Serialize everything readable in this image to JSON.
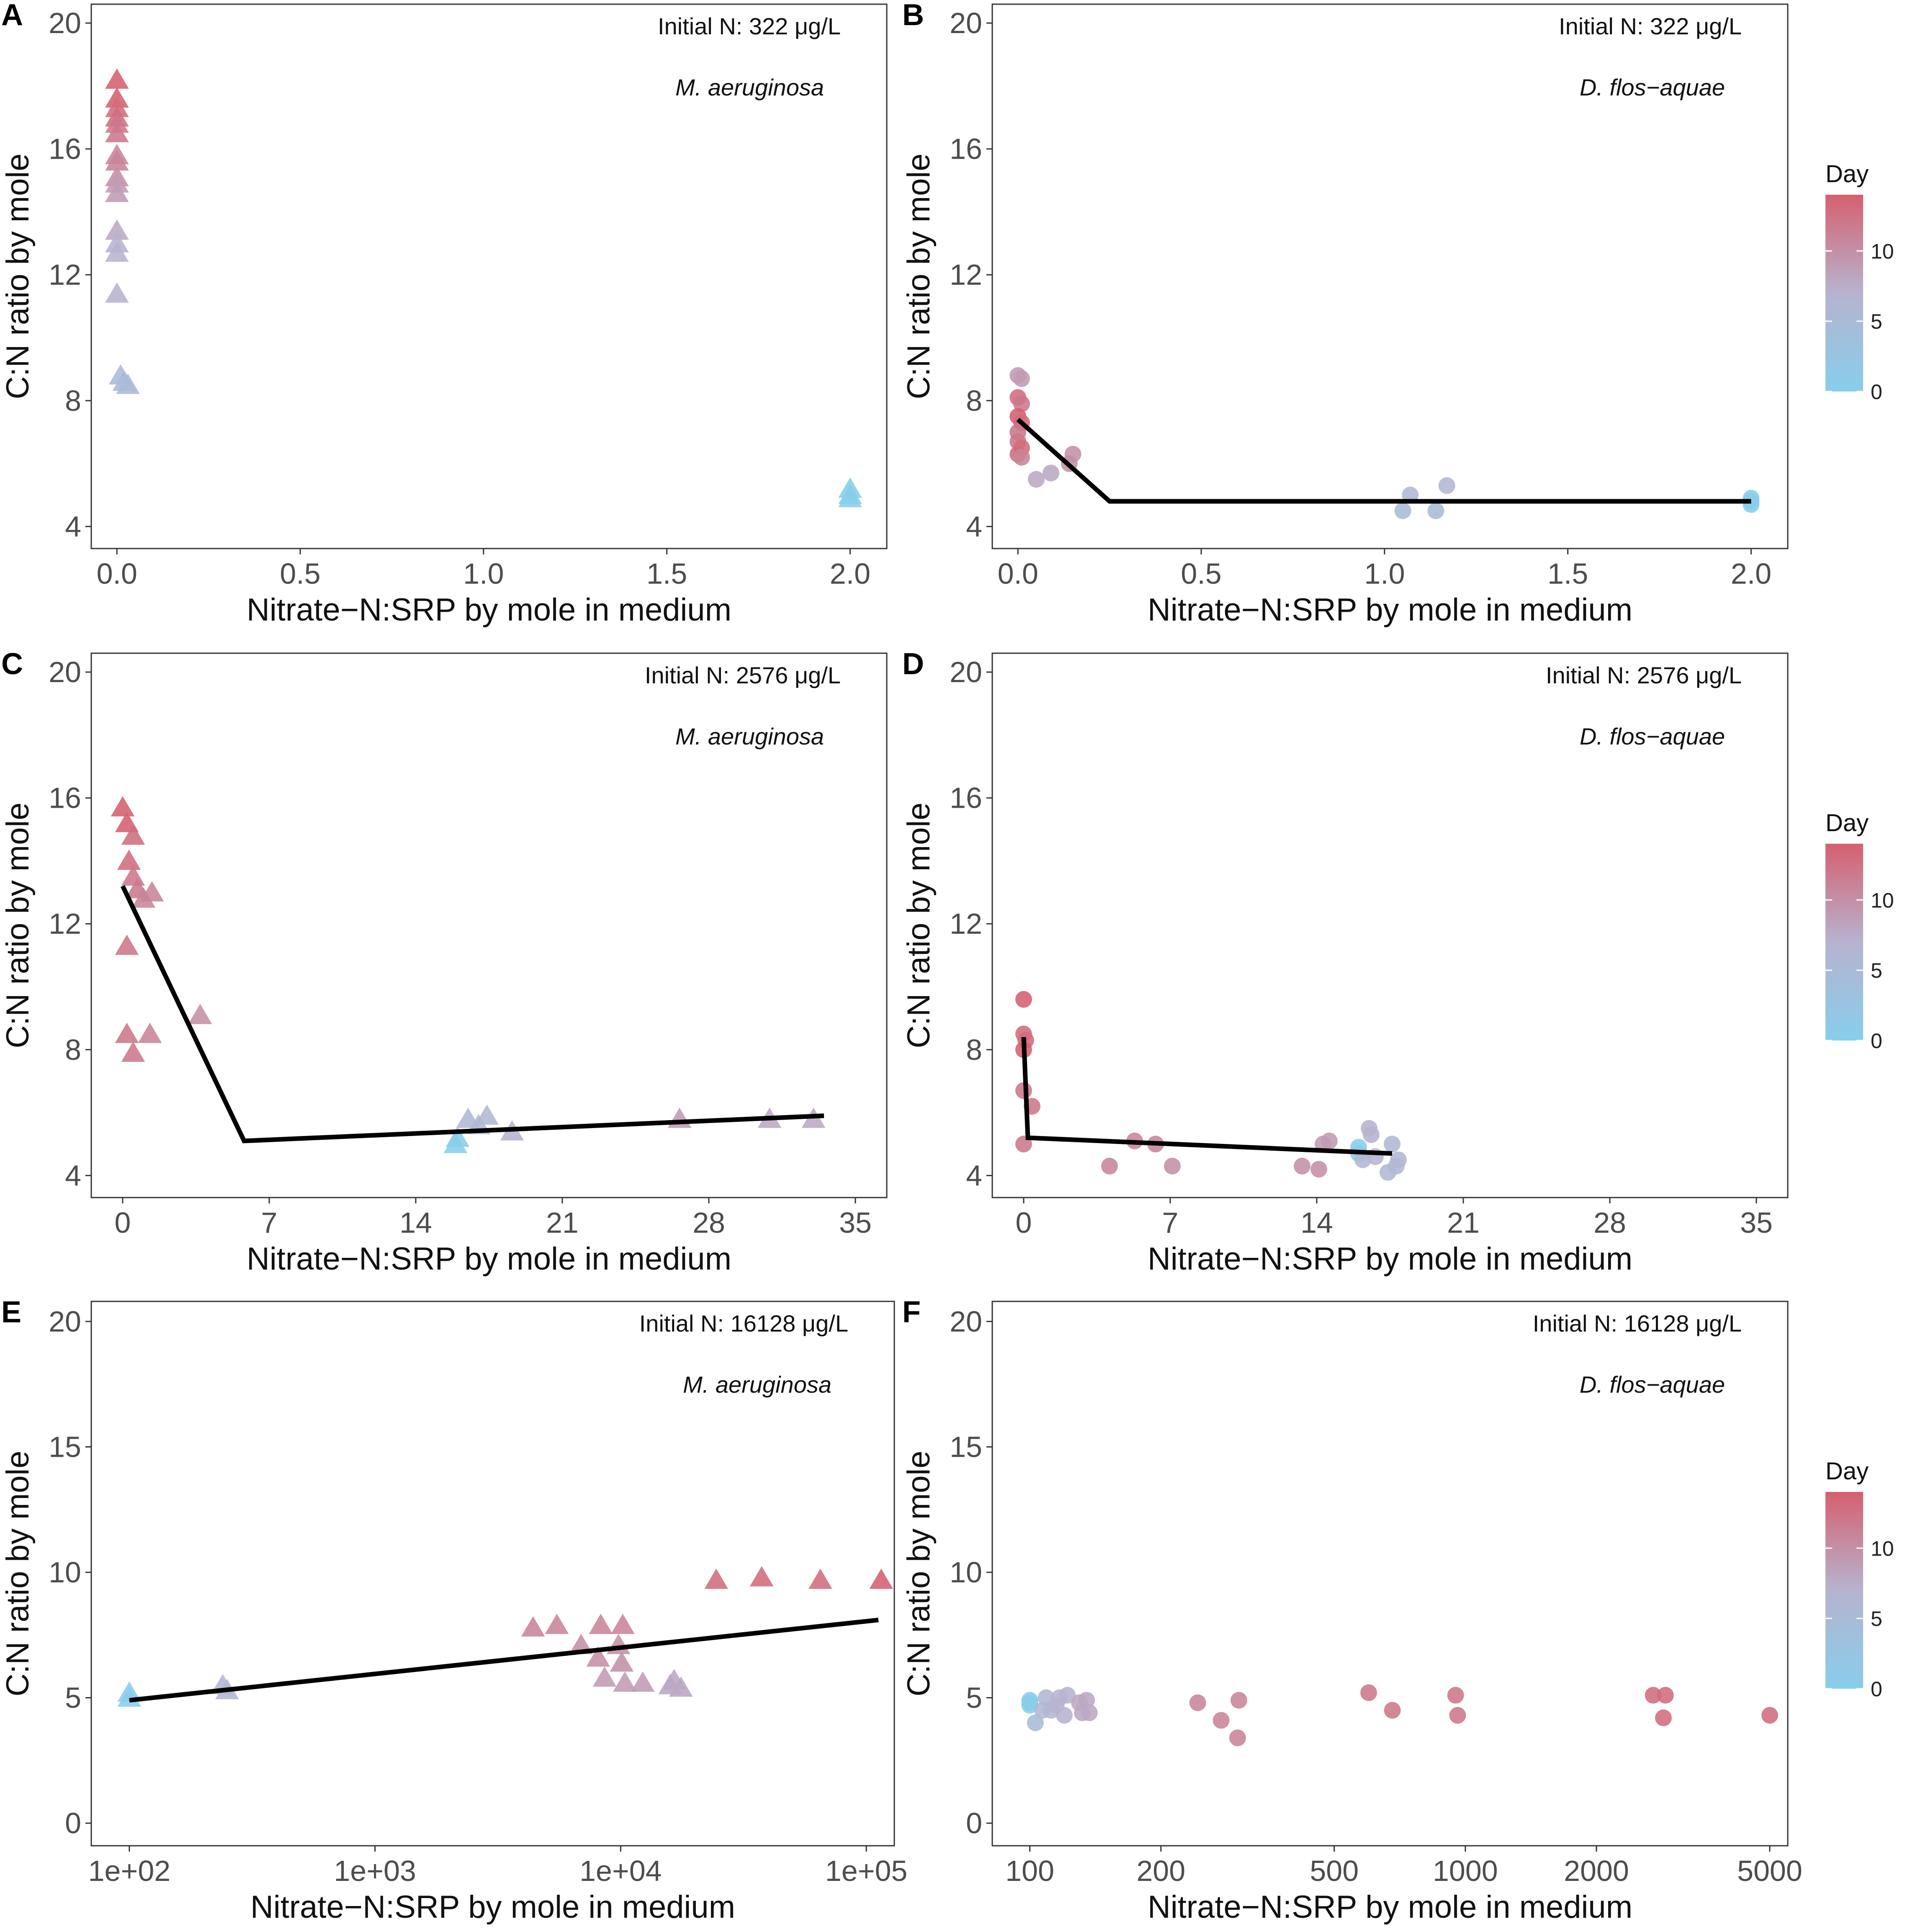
{
  "colors": {
    "low": "#87ceeb",
    "mid": "#b7b3cf",
    "high": "#d5606f",
    "line": "#000000",
    "frame": "#333333"
  },
  "legend": {
    "title": "Day",
    "ticks": [
      0,
      5,
      10
    ],
    "max": 14
  },
  "chart_data": [
    {
      "panel": "A",
      "type": "scatter",
      "marker": "triangle",
      "xscale": "linear",
      "annotation": "Initial N: 322 μg/L",
      "species": "M. aeruginosa",
      "xlabel": "Nitrate−N:SRP by mole in medium",
      "ylabel": "C:N ratio by mole",
      "xlim": [
        -0.07,
        2.1
      ],
      "ylim": [
        3.3,
        20.6
      ],
      "xticks": [
        0,
        0.5,
        1,
        1.5,
        2
      ],
      "xtick_labels": [
        "0.0",
        "0.5",
        "1.0",
        "1.5",
        "2.0"
      ],
      "yticks": [
        4,
        8,
        12,
        16,
        20
      ],
      "ytick_labels": [
        "4",
        "8",
        "12",
        "16",
        "20"
      ],
      "points": [
        [
          0.0,
          18.2,
          14
        ],
        [
          0.0,
          17.6,
          14
        ],
        [
          0.0,
          17.3,
          13
        ],
        [
          0.0,
          17.0,
          13
        ],
        [
          0.0,
          16.8,
          12
        ],
        [
          0.0,
          16.5,
          12
        ],
        [
          0.0,
          15.8,
          11
        ],
        [
          0.0,
          15.6,
          11
        ],
        [
          0.0,
          15.1,
          10
        ],
        [
          0.0,
          14.9,
          9
        ],
        [
          0.0,
          14.6,
          9
        ],
        [
          0.0,
          13.4,
          8
        ],
        [
          0.0,
          13.0,
          7
        ],
        [
          0.0,
          12.7,
          7
        ],
        [
          0.0,
          11.4,
          7
        ],
        [
          0.01,
          8.8,
          5
        ],
        [
          0.02,
          8.6,
          5
        ],
        [
          0.03,
          8.5,
          5
        ],
        [
          2.0,
          5.2,
          0
        ],
        [
          2.0,
          5.0,
          0
        ],
        [
          2.0,
          4.9,
          0
        ]
      ],
      "fit": []
    },
    {
      "panel": "B",
      "type": "scatter",
      "marker": "circle",
      "xscale": "linear",
      "annotation": "Initial N: 322 μg/L",
      "species": "D. flos−aquae",
      "xlabel": "Nitrate−N:SRP by mole in medium",
      "ylabel": "C:N ratio by mole",
      "xlim": [
        -0.07,
        2.1
      ],
      "ylim": [
        3.3,
        20.6
      ],
      "xticks": [
        0,
        0.5,
        1,
        1.5,
        2
      ],
      "xtick_labels": [
        "0.0",
        "0.5",
        "1.0",
        "1.5",
        "2.0"
      ],
      "yticks": [
        4,
        8,
        12,
        16,
        20
      ],
      "ytick_labels": [
        "4",
        "8",
        "12",
        "16",
        "20"
      ],
      "points": [
        [
          0.0,
          8.8,
          9
        ],
        [
          0.01,
          8.7,
          9
        ],
        [
          0.0,
          8.1,
          13
        ],
        [
          0.01,
          7.9,
          12
        ],
        [
          0.0,
          7.5,
          14
        ],
        [
          0.01,
          7.3,
          13
        ],
        [
          0.0,
          7.0,
          12
        ],
        [
          0.0,
          6.7,
          12
        ],
        [
          0.01,
          6.5,
          13
        ],
        [
          0.0,
          6.3,
          13
        ],
        [
          0.01,
          6.2,
          11
        ],
        [
          0.15,
          6.3,
          10
        ],
        [
          0.14,
          6.0,
          10
        ],
        [
          0.09,
          5.7,
          8
        ],
        [
          0.05,
          5.5,
          8
        ],
        [
          1.07,
          5.0,
          6
        ],
        [
          1.17,
          5.3,
          6
        ],
        [
          1.05,
          4.5,
          5
        ],
        [
          1.14,
          4.5,
          5
        ],
        [
          2.0,
          4.9,
          0
        ],
        [
          2.0,
          4.8,
          0
        ],
        [
          2.0,
          4.7,
          0
        ]
      ],
      "fit": [
        [
          0.0,
          7.4
        ],
        [
          0.25,
          4.8
        ],
        [
          2.0,
          4.8
        ]
      ]
    },
    {
      "panel": "C",
      "type": "scatter",
      "marker": "triangle",
      "xscale": "linear",
      "annotation": "Initial N: 2576 μg/L",
      "species": "M. aeruginosa",
      "xlabel": "Nitrate−N:SRP by mole in medium",
      "ylabel": "C:N ratio by mole",
      "xlim": [
        -1.5,
        36.5
      ],
      "ylim": [
        3.3,
        20.6
      ],
      "xticks": [
        0,
        7,
        14,
        21,
        28,
        35
      ],
      "xtick_labels": [
        "0",
        "7",
        "14",
        "21",
        "28",
        "35"
      ],
      "yticks": [
        4,
        8,
        12,
        16,
        20
      ],
      "ytick_labels": [
        "4",
        "8",
        "12",
        "16",
        "20"
      ],
      "points": [
        [
          0.0,
          15.7,
          14
        ],
        [
          0.2,
          15.2,
          14
        ],
        [
          0.5,
          14.8,
          13
        ],
        [
          0.3,
          14.0,
          13
        ],
        [
          0.5,
          13.5,
          12
        ],
        [
          0.7,
          13.1,
          12
        ],
        [
          1.0,
          12.8,
          11
        ],
        [
          1.4,
          13.0,
          11
        ],
        [
          0.2,
          11.3,
          12
        ],
        [
          3.7,
          9.1,
          10
        ],
        [
          0.2,
          8.5,
          12
        ],
        [
          1.3,
          8.5,
          11
        ],
        [
          0.5,
          7.9,
          12
        ],
        [
          16.5,
          5.8,
          6
        ],
        [
          17.0,
          5.6,
          6
        ],
        [
          17.4,
          5.9,
          6
        ],
        [
          18.6,
          5.4,
          7
        ],
        [
          16.0,
          5.2,
          0
        ],
        [
          15.9,
          5.0,
          0
        ],
        [
          26.6,
          5.8,
          9
        ],
        [
          30.9,
          5.8,
          8
        ],
        [
          33.0,
          5.8,
          8
        ]
      ],
      "fit": [
        [
          0.0,
          13.2
        ],
        [
          5.8,
          5.1
        ],
        [
          33.5,
          5.9
        ]
      ]
    },
    {
      "panel": "D",
      "type": "scatter",
      "marker": "circle",
      "xscale": "linear",
      "annotation": "Initial N: 2576 μg/L",
      "species": "D. flos−aquae",
      "xlabel": "Nitrate−N:SRP by mole in medium",
      "ylabel": "C:N ratio by mole",
      "xlim": [
        -1.5,
        36.5
      ],
      "ylim": [
        3.3,
        20.6
      ],
      "xticks": [
        0,
        7,
        14,
        21,
        28,
        35
      ],
      "xtick_labels": [
        "0",
        "7",
        "14",
        "21",
        "28",
        "35"
      ],
      "yticks": [
        4,
        8,
        12,
        16,
        20
      ],
      "ytick_labels": [
        "4",
        "8",
        "12",
        "16",
        "20"
      ],
      "points": [
        [
          0.0,
          9.6,
          14
        ],
        [
          0.0,
          8.5,
          13
        ],
        [
          0.1,
          8.3,
          13
        ],
        [
          0.0,
          8.0,
          14
        ],
        [
          0.0,
          6.7,
          12
        ],
        [
          0.4,
          6.2,
          12
        ],
        [
          0.0,
          5.0,
          12
        ],
        [
          4.1,
          4.3,
          11
        ],
        [
          5.3,
          5.1,
          11
        ],
        [
          6.3,
          5.0,
          11
        ],
        [
          7.1,
          4.3,
          10
        ],
        [
          13.3,
          4.3,
          10
        ],
        [
          14.1,
          4.2,
          10
        ],
        [
          14.3,
          5.0,
          9
        ],
        [
          14.6,
          5.1,
          9
        ],
        [
          16.0,
          4.9,
          0
        ],
        [
          16.0,
          4.7,
          0
        ],
        [
          16.5,
          5.5,
          7
        ],
        [
          16.6,
          5.3,
          7
        ],
        [
          16.8,
          4.6,
          7
        ],
        [
          16.2,
          4.5,
          6
        ],
        [
          17.4,
          4.1,
          6
        ],
        [
          17.8,
          4.3,
          6
        ],
        [
          17.6,
          5.0,
          6
        ],
        [
          17.9,
          4.5,
          6
        ]
      ],
      "fit": [
        [
          0.0,
          8.4
        ],
        [
          0.2,
          5.2
        ],
        [
          17.6,
          4.7
        ]
      ]
    },
    {
      "panel": "E",
      "type": "scatter",
      "marker": "triangle",
      "xscale": "log",
      "annotation": "Initial N: 16128 μg/L",
      "species": "M. aeruginosa",
      "xlabel": "Nitrate−N:SRP by mole in medium",
      "ylabel": "C:N ratio by mole",
      "xlim": [
        70,
        130000
      ],
      "ylim": [
        -0.9,
        20.8
      ],
      "xticks": [
        100,
        1000,
        10000,
        100000
      ],
      "xtick_labels": [
        "1e+02",
        "1e+03",
        "1e+04",
        "1e+05"
      ],
      "yticks": [
        0,
        5,
        10,
        15,
        20
      ],
      "ytick_labels": [
        "0",
        "5",
        "10",
        "15",
        "20"
      ],
      "points": [
        [
          100,
          5.2,
          0
        ],
        [
          100,
          5.0,
          0
        ],
        [
          240,
          5.5,
          6
        ],
        [
          250,
          5.3,
          6
        ],
        [
          4400,
          7.8,
          11
        ],
        [
          5500,
          7.9,
          11
        ],
        [
          6900,
          7.1,
          10
        ],
        [
          8300,
          7.9,
          11
        ],
        [
          8100,
          6.6,
          10
        ],
        [
          8600,
          5.8,
          9
        ],
        [
          9800,
          7.1,
          10
        ],
        [
          10200,
          7.9,
          11
        ],
        [
          10100,
          6.4,
          10
        ],
        [
          10400,
          5.6,
          9
        ],
        [
          12300,
          5.6,
          9
        ],
        [
          15900,
          5.5,
          8
        ],
        [
          16500,
          5.7,
          8
        ],
        [
          17600,
          5.4,
          8
        ],
        [
          24500,
          9.7,
          13
        ],
        [
          37500,
          9.8,
          13
        ],
        [
          65000,
          9.7,
          13
        ],
        [
          115000,
          9.7,
          14
        ]
      ],
      "fit": [
        [
          100,
          4.9
        ],
        [
          112000,
          8.1
        ]
      ]
    },
    {
      "panel": "F",
      "type": "scatter",
      "marker": "circle",
      "xscale": "log",
      "annotation": "Initial N: 16128 μg/L",
      "species": "D. flos−aquae",
      "xlabel": "Nitrate−N:SRP by mole in medium",
      "ylabel": "C:N ratio by mole",
      "xlim": [
        82,
        5500
      ],
      "ylim": [
        -0.9,
        20.8
      ],
      "xticks": [
        100,
        200,
        500,
        1000,
        2000,
        5000
      ],
      "xtick_labels": [
        "100",
        "200",
        "500",
        "1000",
        "2000",
        "5000"
      ],
      "yticks": [
        0,
        5,
        10,
        15,
        20
      ],
      "ytick_labels": [
        "0",
        "5",
        "10",
        "15",
        "20"
      ],
      "points": [
        [
          100,
          4.9,
          0
        ],
        [
          100,
          4.7,
          0
        ],
        [
          100,
          4.8,
          0
        ],
        [
          103,
          4.0,
          5
        ],
        [
          107,
          4.5,
          6
        ],
        [
          109,
          5.0,
          6
        ],
        [
          112,
          4.5,
          6
        ],
        [
          115,
          4.7,
          7
        ],
        [
          117,
          5.0,
          7
        ],
        [
          120,
          4.3,
          7
        ],
        [
          122,
          5.1,
          7
        ],
        [
          130,
          4.8,
          8
        ],
        [
          132,
          4.4,
          8
        ],
        [
          135,
          4.9,
          8
        ],
        [
          137,
          4.4,
          8
        ],
        [
          243,
          4.8,
          11
        ],
        [
          275,
          4.1,
          11
        ],
        [
          300,
          3.4,
          11
        ],
        [
          302,
          4.9,
          11
        ],
        [
          600,
          5.2,
          12
        ],
        [
          680,
          4.5,
          12
        ],
        [
          950,
          5.1,
          12
        ],
        [
          960,
          4.3,
          12
        ],
        [
          2700,
          5.1,
          13
        ],
        [
          2850,
          4.2,
          13
        ],
        [
          2880,
          5.1,
          13
        ],
        [
          5000,
          4.3,
          13
        ]
      ],
      "fit": []
    }
  ]
}
